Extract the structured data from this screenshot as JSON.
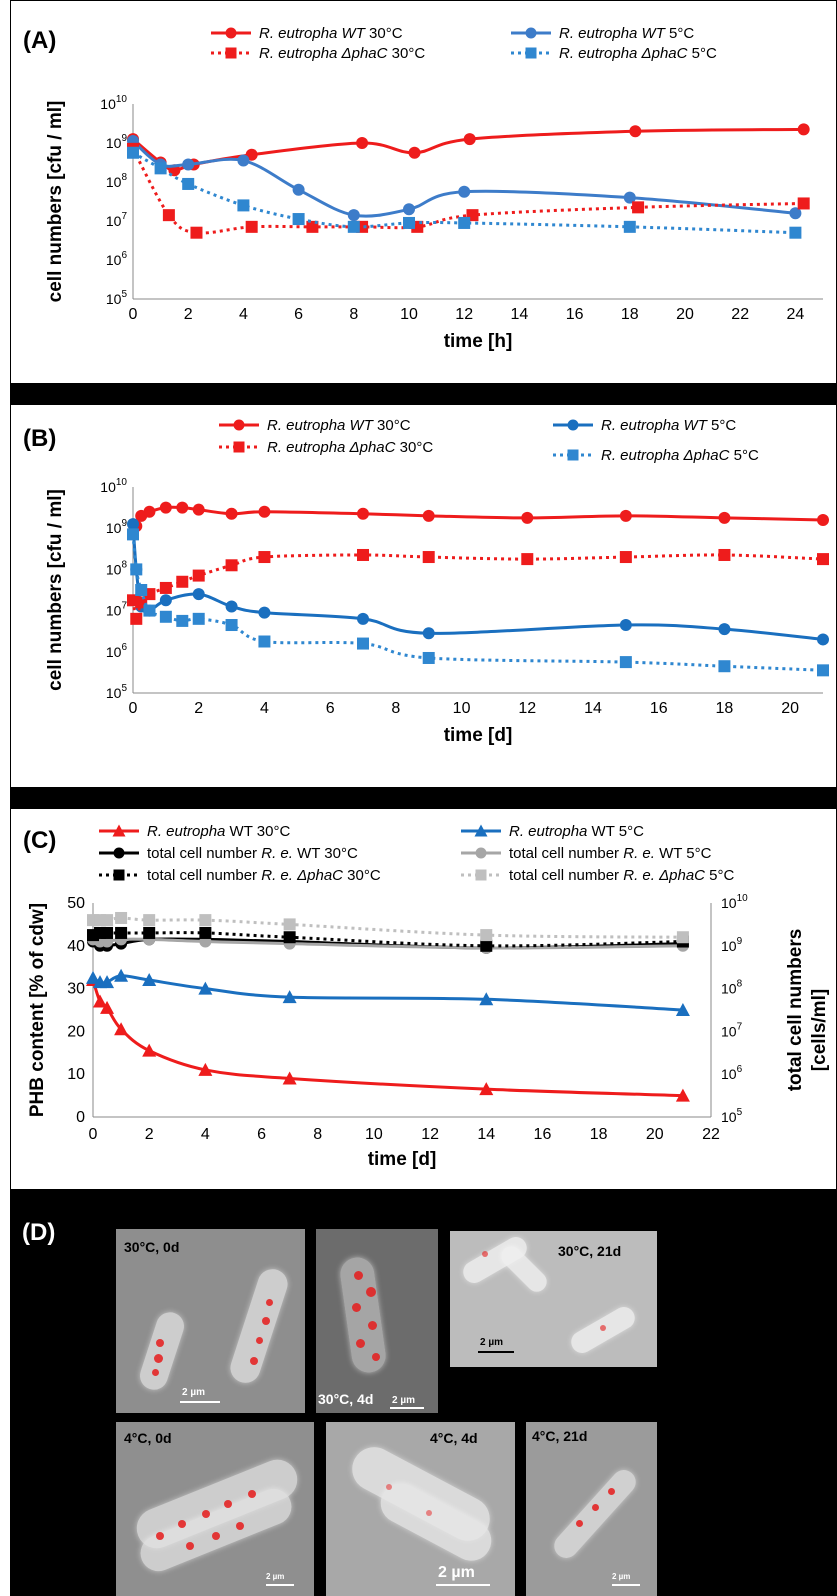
{
  "panels": {
    "A": {
      "label": "(A)"
    },
    "B": {
      "label": "(B)"
    },
    "C": {
      "label": "(C)"
    },
    "D": {
      "label": "(D)"
    }
  },
  "colors": {
    "red": "#ee1c1c",
    "blue": "#3d7cc9",
    "blue_dark": "#1a6fbf",
    "sq_blue": "#2f87d0",
    "black": "#000000",
    "gray": "#a6a6a6",
    "gray_light": "#bfbfbf"
  },
  "chart_data": [
    {
      "id": "A",
      "type": "line",
      "ylabel": "cell numbers [cfu / ml]",
      "xlabel": "time [h]",
      "xlim": [
        0,
        25
      ],
      "xticks": [
        "0",
        "2",
        "4",
        "6",
        "8",
        "10",
        "12",
        "14",
        "16",
        "18",
        "20",
        "22",
        "24"
      ],
      "ylim_log10": [
        5,
        10
      ],
      "yscale": "log",
      "yticks": [
        {
          "base": "10",
          "exp": "10"
        },
        {
          "base": "10",
          "exp": "9"
        },
        {
          "base": "10",
          "exp": "8"
        },
        {
          "base": "10",
          "exp": "7"
        },
        {
          "base": "10",
          "exp": "6"
        },
        {
          "base": "10",
          "exp": "5"
        }
      ],
      "legend": [
        {
          "name_italic": "R. eutropha WT",
          "name_rest": " 30°C",
          "color": "#ee1c1c",
          "dash": false,
          "marker": "circle"
        },
        {
          "name_italic": "R. eutropha WT",
          "name_rest": " 5°C",
          "color": "#3d7cc9",
          "dash": false,
          "marker": "circle"
        },
        {
          "name_italic": "R. eutropha ΔphaC",
          "name_rest": " 30°C",
          "color": "#ee1c1c",
          "dash": true,
          "marker": "square"
        },
        {
          "name_italic": "R. eutropha ΔphaC",
          "name_rest": " 5°C",
          "color": "#2f87d0",
          "dash": true,
          "marker": "square"
        }
      ],
      "series": [
        {
          "x": [
            0,
            1,
            1.5,
            2.2,
            4.3,
            8.3,
            10.2,
            12.2,
            18.2,
            24.3
          ],
          "y": [
            9.1,
            8.5,
            8.3,
            8.45,
            8.7,
            9.0,
            8.75,
            9.1,
            9.3,
            9.35
          ]
        },
        {
          "x": [
            0,
            1,
            2,
            4,
            6,
            8,
            10,
            12,
            18,
            24
          ],
          "y": [
            9.05,
            8.45,
            8.45,
            8.55,
            7.8,
            7.15,
            7.3,
            7.75,
            7.6,
            7.2
          ]
        },
        {
          "x": [
            0,
            1.3,
            2.3,
            4.3,
            6.5,
            8.3,
            10.3,
            12.3,
            18.3,
            24.3
          ],
          "y": [
            8.85,
            7.15,
            6.7,
            6.85,
            6.85,
            6.85,
            6.85,
            7.15,
            7.35,
            7.45
          ]
        },
        {
          "x": [
            0,
            1,
            2,
            4,
            6,
            8,
            10,
            12,
            18,
            24
          ],
          "y": [
            8.75,
            8.35,
            7.95,
            7.4,
            7.05,
            6.85,
            6.95,
            6.95,
            6.85,
            6.7
          ]
        }
      ]
    },
    {
      "id": "B",
      "type": "line",
      "ylabel": "cell numbers [cfu / ml]",
      "xlabel": "time [d]",
      "xlim": [
        0,
        21
      ],
      "xticks": [
        "0",
        "2",
        "4",
        "6",
        "8",
        "10",
        "12",
        "14",
        "16",
        "18",
        "20"
      ],
      "ylim_log10": [
        5,
        10
      ],
      "yscale": "log",
      "yticks": [
        {
          "base": "10",
          "exp": "10"
        },
        {
          "base": "10",
          "exp": "9"
        },
        {
          "base": "10",
          "exp": "8"
        },
        {
          "base": "10",
          "exp": "7"
        },
        {
          "base": "10",
          "exp": "6"
        },
        {
          "base": "10",
          "exp": "5"
        }
      ],
      "legend": [
        {
          "name_italic": "R. eutropha WT",
          "name_rest": " 30°C",
          "color": "#ee1c1c",
          "dash": false,
          "marker": "circle"
        },
        {
          "name_italic": "R. eutropha WT",
          "name_rest": " 5°C",
          "color": "#1a6fbf",
          "dash": false,
          "marker": "circle"
        },
        {
          "name_italic": "R. eutropha ΔphaC",
          "name_rest": " 30°C",
          "color": "#ee1c1c",
          "dash": true,
          "marker": "square"
        },
        {
          "name_italic": "R. eutropha ΔphaC",
          "name_rest": " 5°C",
          "color": "#2f87d0",
          "dash": true,
          "marker": "square"
        }
      ],
      "series": [
        {
          "x": [
            0,
            0.1,
            0.25,
            0.5,
            1,
            1.5,
            2,
            3,
            4,
            7,
            9,
            12,
            15,
            18,
            21
          ],
          "y": [
            8.9,
            9.05,
            9.3,
            9.4,
            9.5,
            9.5,
            9.45,
            9.35,
            9.4,
            9.35,
            9.3,
            9.25,
            9.3,
            9.25,
            9.2
          ]
        },
        {
          "x": [
            0,
            0.1,
            0.25,
            0.5,
            1,
            2,
            3,
            4,
            7,
            9,
            15,
            18,
            21
          ],
          "y": [
            9.1,
            8.0,
            7.1,
            7.0,
            7.25,
            7.4,
            7.1,
            6.95,
            6.8,
            6.45,
            6.65,
            6.55,
            6.3
          ]
        },
        {
          "x": [
            0,
            0.1,
            0.25,
            0.5,
            1,
            1.5,
            2,
            3,
            4,
            7,
            9,
            12,
            15,
            18,
            21
          ],
          "y": [
            7.25,
            6.8,
            7.2,
            7.4,
            7.55,
            7.7,
            7.85,
            8.1,
            8.3,
            8.35,
            8.3,
            8.25,
            8.3,
            8.35,
            8.25
          ]
        },
        {
          "x": [
            0,
            0.1,
            0.25,
            0.5,
            1,
            1.5,
            2,
            3,
            4,
            7,
            9,
            15,
            18,
            21
          ],
          "y": [
            8.85,
            8.0,
            7.5,
            7.0,
            6.85,
            6.75,
            6.8,
            6.65,
            6.25,
            6.2,
            5.85,
            5.75,
            5.65,
            5.55
          ]
        }
      ]
    },
    {
      "id": "C",
      "type": "line",
      "ylabel": "PHB content [% of cdw]",
      "y2label_line1": "total cell numbers",
      "y2label_line2": "[cells/ml]",
      "xlabel": "time [d]",
      "xlim": [
        0,
        22
      ],
      "xticks": [
        "0",
        "2",
        "4",
        "6",
        "8",
        "10",
        "12",
        "14",
        "16",
        "18",
        "20",
        "22"
      ],
      "ylim": [
        0,
        50
      ],
      "yticks": [
        "50",
        "40",
        "30",
        "20",
        "10",
        "0"
      ],
      "y2lim_log10": [
        5,
        10
      ],
      "y2ticks": [
        {
          "base": "10",
          "exp": "10"
        },
        {
          "base": "10",
          "exp": "9"
        },
        {
          "base": "10",
          "exp": "8"
        },
        {
          "base": "10",
          "exp": "7"
        },
        {
          "base": "10",
          "exp": "6"
        },
        {
          "base": "10",
          "exp": "5"
        }
      ],
      "legend": [
        {
          "name_italic": "R. eutropha",
          "name_rest": " WT 30°C",
          "prefix": "",
          "color": "#ee1c1c",
          "dash": false,
          "marker": "triangle"
        },
        {
          "name_italic": "R. eutropha",
          "name_rest": " WT 5°C",
          "prefix": "",
          "color": "#1a6fbf",
          "dash": false,
          "marker": "triangle"
        },
        {
          "prefix": "total cell number ",
          "name_italic": "R. e.",
          "name_rest": " WT 30°C",
          "color": "#000000",
          "dash": false,
          "marker": "circle"
        },
        {
          "prefix": "total cell number ",
          "name_italic": "R. e.",
          "name_rest": " WT 5°C",
          "color": "#a6a6a6",
          "dash": false,
          "marker": "circle"
        },
        {
          "prefix": "total cell number ",
          "name_italic": "R. e. ΔphaC",
          "name_rest": " 30°C",
          "color": "#000000",
          "dash": true,
          "marker": "square"
        },
        {
          "prefix": "total cell number ",
          "name_italic": "R. e. ΔphaC",
          "name_rest": " 5°C",
          "color": "#bfbfbf",
          "dash": true,
          "marker": "square"
        }
      ],
      "series": [
        {
          "axis": "left",
          "x": [
            0,
            0.25,
            0.5,
            1,
            2,
            4,
            7,
            14,
            21
          ],
          "y": [
            32,
            27,
            25.5,
            20.5,
            15.5,
            11,
            9,
            6.5,
            5
          ]
        },
        {
          "axis": "left",
          "x": [
            0,
            0.25,
            0.5,
            1,
            2,
            4,
            7,
            14,
            21
          ],
          "y": [
            32.5,
            31.5,
            31.5,
            33,
            32,
            30,
            28,
            27.5,
            25
          ]
        },
        {
          "axis": "right",
          "x": [
            0,
            0.25,
            0.5,
            1,
            2,
            4,
            7,
            14,
            21
          ],
          "y": [
            9.1,
            9.0,
            9.0,
            9.05,
            9.15,
            9.15,
            9.1,
            8.95,
            9.05
          ]
        },
        {
          "axis": "right",
          "x": [
            0,
            0.25,
            0.5,
            1,
            2,
            4,
            7,
            14,
            21
          ],
          "y": [
            9.15,
            9.1,
            9.1,
            9.15,
            9.15,
            9.1,
            9.05,
            8.95,
            9.0
          ]
        },
        {
          "axis": "right",
          "x": [
            0,
            0.25,
            0.5,
            1,
            2,
            4,
            7,
            14,
            21
          ],
          "y": [
            9.25,
            9.3,
            9.3,
            9.3,
            9.3,
            9.3,
            9.2,
            9.0,
            9.1
          ]
        },
        {
          "axis": "right",
          "x": [
            0,
            0.25,
            0.5,
            1,
            2,
            4,
            7,
            14,
            21
          ],
          "y": [
            9.6,
            9.6,
            9.6,
            9.65,
            9.6,
            9.6,
            9.5,
            9.25,
            9.2
          ]
        }
      ]
    }
  ],
  "micrographs": [
    {
      "label": "30°C, 0d",
      "scale": "2 µm"
    },
    {
      "label": "30°C, 4d",
      "scale": "2 µm"
    },
    {
      "label": "30°C, 21d",
      "scale": "2 µm"
    },
    {
      "label": "4°C, 0d",
      "scale": "2 µm"
    },
    {
      "label": "4°C, 4d",
      "scale": "2 µm"
    },
    {
      "label": "4°C, 21d",
      "scale": "2 µm"
    }
  ]
}
